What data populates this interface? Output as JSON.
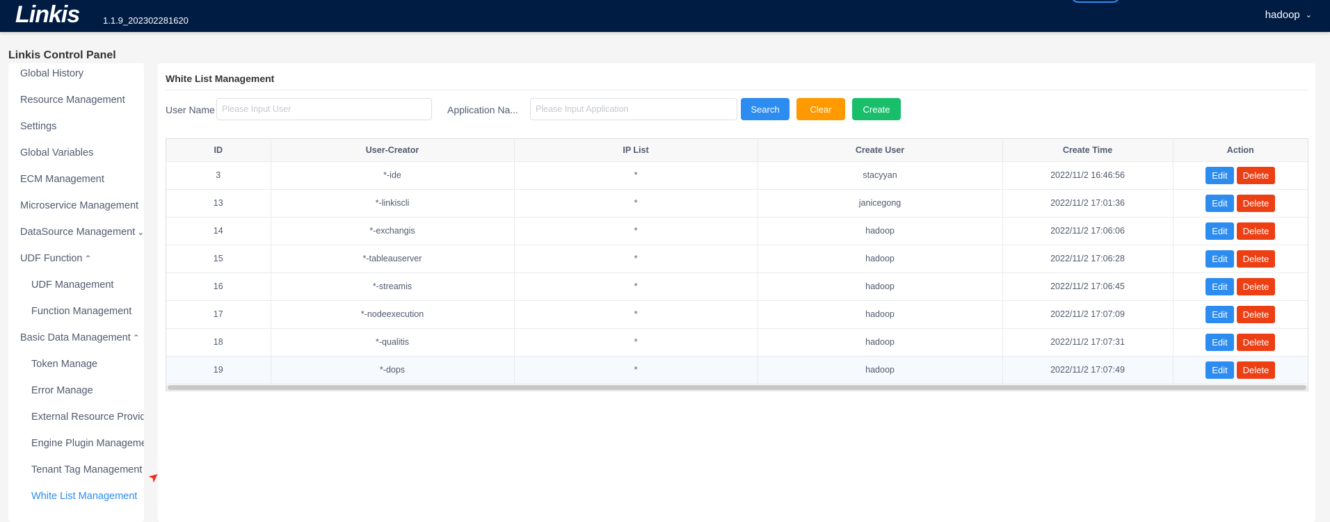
{
  "header": {
    "logo": "Linkis",
    "version": "1.1.9_202302281620",
    "user": "hadoop"
  },
  "panel_title": "Linkis Control Panel",
  "sidebar": {
    "items": [
      {
        "label": "Global History",
        "sub": false
      },
      {
        "label": "Resource Management",
        "sub": false
      },
      {
        "label": "Settings",
        "sub": false
      },
      {
        "label": "Global Variables",
        "sub": false
      },
      {
        "label": "ECM Management",
        "sub": false
      },
      {
        "label": "Microservice Management",
        "sub": false
      },
      {
        "label": "DataSource Management",
        "sub": false,
        "chevron": "down"
      },
      {
        "label": "UDF Function",
        "sub": false,
        "chevron": "up"
      },
      {
        "label": "UDF Management",
        "sub": true
      },
      {
        "label": "Function Management",
        "sub": true
      },
      {
        "label": "Basic Data Management",
        "sub": false,
        "chevron": "up"
      },
      {
        "label": "Token Manage",
        "sub": true
      },
      {
        "label": "Error Manage",
        "sub": true
      },
      {
        "label": "External Resource Provider",
        "sub": true
      },
      {
        "label": "Engine Plugin Management",
        "sub": true
      },
      {
        "label": "Tenant Tag Management",
        "sub": true
      },
      {
        "label": "White List Management",
        "sub": true,
        "active": true
      }
    ]
  },
  "main": {
    "title": "White List Management",
    "filters": {
      "user_label": "User Name",
      "user_placeholder": "Please Input User",
      "app_label": "Application Na...",
      "app_placeholder": "Please Input Application"
    },
    "buttons": {
      "search": "Search",
      "clear": "Clear",
      "create": "Create"
    },
    "colors": {
      "search": "#2d8cf0",
      "clear": "#ff9900",
      "create": "#19be6b",
      "delete": "#ed3f14",
      "active": "#2d8cf0"
    },
    "table": {
      "columns": [
        "ID",
        "User-Creator",
        "IP List",
        "Create User",
        "Create Time",
        "Action"
      ],
      "edit_label": "Edit",
      "delete_label": "Delete",
      "rows": [
        [
          "3",
          "*-ide",
          "*",
          "stacyyan",
          "2022/11/2 16:46:56"
        ],
        [
          "13",
          "*-linkiscli",
          "*",
          "janicegong",
          "2022/11/2 17:01:36"
        ],
        [
          "14",
          "*-exchangis",
          "*",
          "hadoop",
          "2022/11/2 17:06:06"
        ],
        [
          "15",
          "*-tableauserver",
          "*",
          "hadoop",
          "2022/11/2 17:06:28"
        ],
        [
          "16",
          "*-streamis",
          "*",
          "hadoop",
          "2022/11/2 17:06:45"
        ],
        [
          "17",
          "*-nodeexecution",
          "*",
          "hadoop",
          "2022/11/2 17:07:09"
        ],
        [
          "18",
          "*-qualitis",
          "*",
          "hadoop",
          "2022/11/2 17:07:31"
        ],
        [
          "19",
          "*-dops",
          "*",
          "hadoop",
          "2022/11/2 17:07:49"
        ]
      ]
    }
  }
}
